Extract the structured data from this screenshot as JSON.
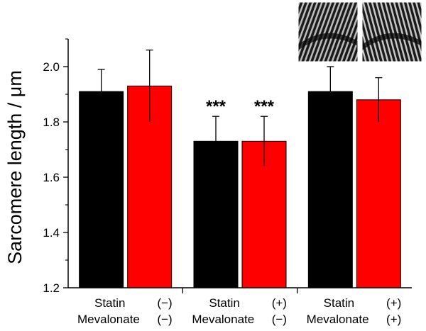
{
  "chart_data": {
    "type": "bar",
    "title": "",
    "xlabel": "",
    "ylabel": "Sarcomere length / μm",
    "ylim": [
      1.2,
      2.1
    ],
    "yticks": [
      "1.2",
      "1.4",
      "1.6",
      "1.8",
      "2.0"
    ],
    "grid": false,
    "groups": [
      {
        "rows": [
          {
            "factor": "Statin",
            "state": "(−)"
          },
          {
            "factor": "Mevalonate",
            "state": "(−)"
          }
        ]
      },
      {
        "rows": [
          {
            "factor": "Statin",
            "state": "(+)"
          },
          {
            "factor": "Mevalonate",
            "state": "(−)"
          }
        ]
      },
      {
        "rows": [
          {
            "factor": "Statin",
            "state": "(+)"
          },
          {
            "factor": "Mevalonate",
            "state": "(+)"
          }
        ]
      }
    ],
    "series": [
      {
        "color": "#000000",
        "values": [
          1.91,
          1.73,
          1.91
        ],
        "errors": [
          0.08,
          0.09,
          0.09
        ],
        "significance": [
          "",
          "***",
          ""
        ]
      },
      {
        "color": "#ff0000",
        "values": [
          1.93,
          1.73,
          1.88
        ],
        "errors": [
          0.13,
          0.09,
          0.08
        ],
        "significance": [
          "",
          "***",
          ""
        ]
      }
    ],
    "inset_images": [
      "striated-micrograph-icon",
      "striated-micrograph-icon"
    ]
  }
}
